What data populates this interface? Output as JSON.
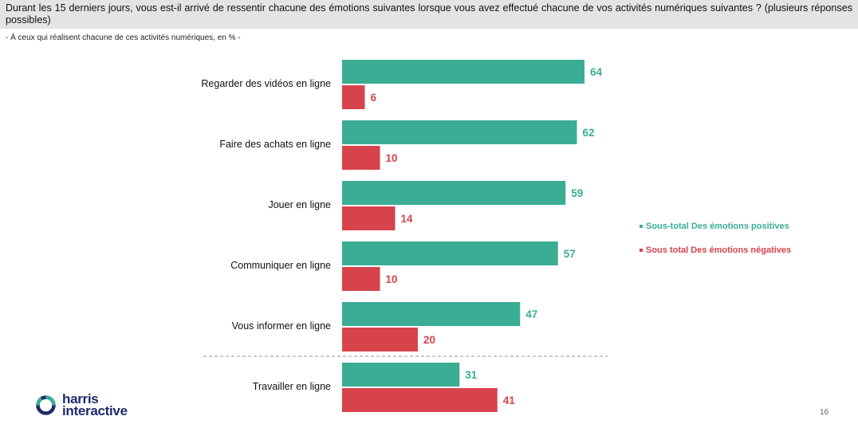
{
  "header": {
    "question": "Durant les 15 derniers jours, vous est-il arrivé de ressentir chacune des émotions suivantes lorsque vous avez effectué chacune de vos activités numériques suivantes ? (plusieurs réponses possibles)",
    "subtitle": "- À ceux qui réalisent chacune de ces activités numériques, en % -"
  },
  "colors": {
    "positive": "#3aad94",
    "negative": "#d7434b",
    "divider": "#9a9a9a"
  },
  "chart_data": {
    "type": "bar",
    "orientation": "horizontal",
    "categories": [
      "Regarder des vidéos en ligne",
      "Faire des achats en ligne",
      "Jouer en ligne",
      "Communiquer en ligne",
      "Vous informer en ligne",
      "Travailler en ligne"
    ],
    "series": [
      {
        "name": "Sous-total Des émotions positives",
        "color": "#3aad94",
        "values": [
          64,
          62,
          59,
          57,
          47,
          31
        ]
      },
      {
        "name": "Sous total Des émotions négatives",
        "color": "#d7434b",
        "values": [
          6,
          10,
          14,
          10,
          20,
          41
        ]
      }
    ],
    "xlim": [
      0,
      64
    ],
    "grid": false,
    "legend_position": "right",
    "separator_before_last_category": true,
    "data_labels": true
  },
  "legend": {
    "positive_label": "Sous-total Des émotions positives",
    "negative_label": "Sous total Des émotions négatives"
  },
  "branding": {
    "logo_line1": "harris",
    "logo_line2": "interactive",
    "logo_icon": "harris-ring-icon"
  },
  "page_number": "16"
}
